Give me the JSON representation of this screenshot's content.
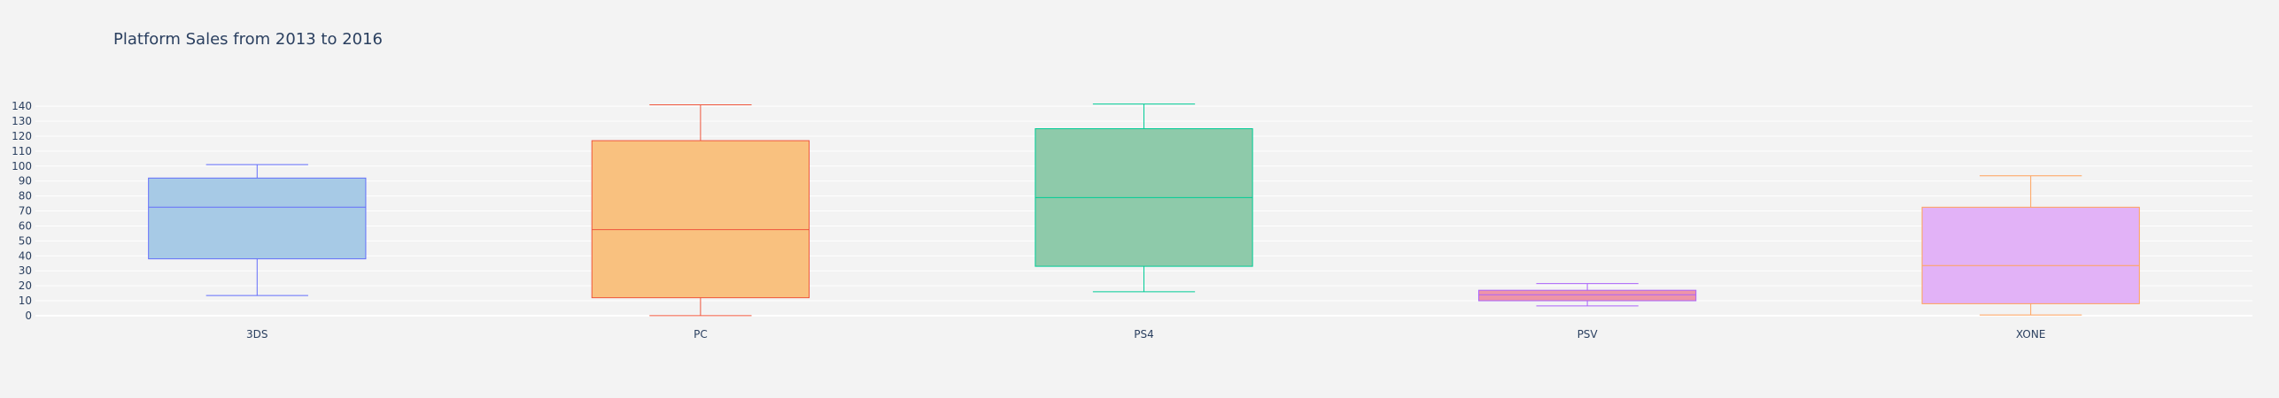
{
  "chart_data": {
    "type": "box",
    "title": "Platform Sales from 2013 to 2016",
    "xlabel": "",
    "ylabel": "",
    "ylim": [
      -3,
      146
    ],
    "yticks": [
      0,
      10,
      20,
      30,
      40,
      50,
      60,
      70,
      80,
      90,
      100,
      110,
      120,
      130,
      140
    ],
    "grid": true,
    "legend": "none",
    "categories": [
      "3DS",
      "PC",
      "PS4",
      "PSV",
      "XONE"
    ],
    "series": [
      {
        "category": "3DS",
        "min": 13.5,
        "q1": 38,
        "median": 72.5,
        "q3": 92,
        "max": 101,
        "line_color": "#636efa",
        "fill_color": "#a7cae6"
      },
      {
        "category": "PC",
        "min": 0,
        "q1": 12,
        "median": 57.5,
        "q3": 117,
        "max": 141,
        "line_color": "#ef553b",
        "fill_color": "#f9c17f"
      },
      {
        "category": "PS4",
        "min": 16,
        "q1": 33,
        "median": 79,
        "q3": 125,
        "max": 141.5,
        "line_color": "#00cc96",
        "fill_color": "#8ecaaa"
      },
      {
        "category": "PSV",
        "min": 6.5,
        "q1": 10,
        "median": 14,
        "q3": 17,
        "max": 21.5,
        "line_color": "#ab63fa",
        "fill_color": "#ee94a7"
      },
      {
        "category": "XONE",
        "min": 0.5,
        "q1": 8,
        "median": 33.5,
        "q3": 72.5,
        "max": 93.5,
        "line_color": "#ffa15a",
        "fill_color": "#e2b2f7"
      }
    ]
  }
}
